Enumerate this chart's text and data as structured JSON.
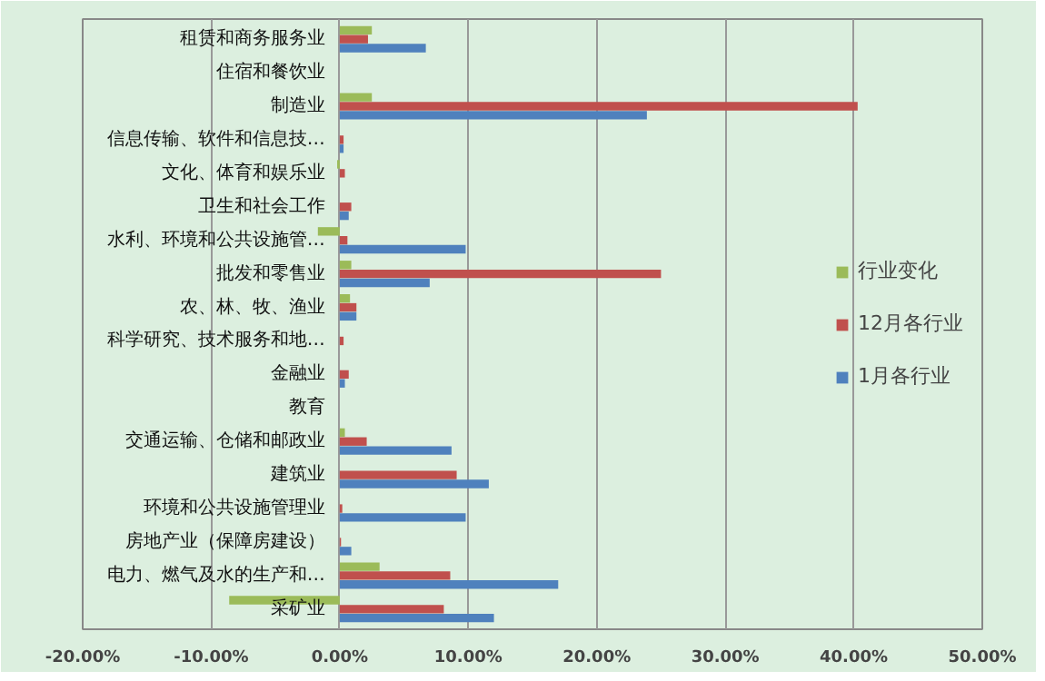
{
  "chart_data": {
    "type": "bar",
    "orientation": "horizontal",
    "categories": [
      "租赁和商务服务业",
      "住宿和餐饮业",
      "制造业",
      "信息传输、软件和信息技…",
      "文化、体育和娱乐业",
      "卫生和社会工作",
      "水利、环境和公共设施管…",
      "批发和零售业",
      "农、林、牧、渔业",
      "科学研究、技术服务和地…",
      "金融业",
      "教育",
      "交通运输、仓储和邮政业",
      "建筑业",
      "环境和公共设施管理业",
      "房地产业（保障房建设）",
      "电力、燃气及水的生产和…",
      "采矿业"
    ],
    "series": [
      {
        "name": "行业变化",
        "color": "#9bbb59",
        "values": [
          2.5,
          0,
          2.5,
          0,
          -0.2,
          0,
          -1.7,
          0.9,
          0.8,
          0,
          0,
          0,
          0.4,
          0,
          0,
          0,
          3.1,
          -8.6
        ]
      },
      {
        "name": "12月各行业",
        "color": "#c0504d",
        "values": [
          2.2,
          0,
          40.3,
          0.3,
          0.4,
          0.9,
          0.6,
          25.0,
          1.3,
          0.3,
          0.7,
          0,
          2.1,
          9.1,
          0.2,
          0.1,
          8.6,
          8.1
        ]
      },
      {
        "name": "1月各行业",
        "color": "#4f81bd",
        "values": [
          6.7,
          0,
          23.9,
          0.3,
          0,
          0.7,
          9.8,
          7.0,
          1.3,
          0,
          0.4,
          0,
          8.7,
          11.6,
          9.8,
          0.9,
          17.0,
          12.0
        ]
      }
    ],
    "xlim": [
      -20,
      50
    ],
    "xticks": [
      {
        "value": -20,
        "label": "-20.00%"
      },
      {
        "value": -10,
        "label": "-10.00%"
      },
      {
        "value": 0,
        "label": "0.00%"
      },
      {
        "value": 10,
        "label": "10.00%"
      },
      {
        "value": 20,
        "label": "20.00%"
      },
      {
        "value": 30,
        "label": "30.00%"
      },
      {
        "value": 40,
        "label": "40.00%"
      },
      {
        "value": 50,
        "label": "50.00%"
      }
    ],
    "grid": "x",
    "legend": "right"
  }
}
